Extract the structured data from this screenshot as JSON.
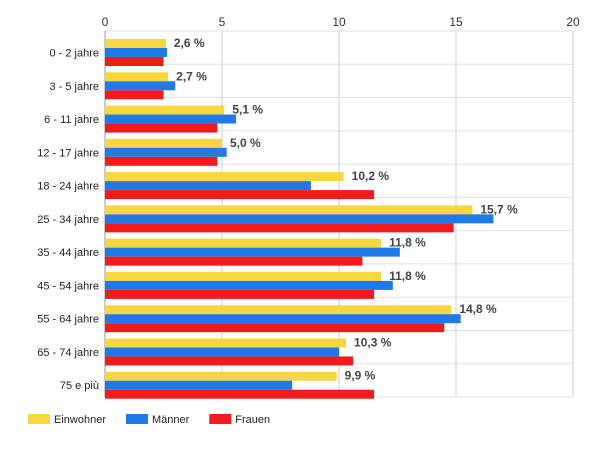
{
  "chart_data": {
    "type": "bar",
    "orientation": "horizontal",
    "categories": [
      "0 - 2 jahre",
      "3 - 5 jahre",
      "6 - 11 jahre",
      "12 - 17 jahre",
      "18 - 24 jahre",
      "25 - 34 jahre",
      "35 - 44 jahre",
      "45 - 54 jahre",
      "55 - 64 jahre",
      "65 - 74 jahre",
      "75 e più"
    ],
    "series": [
      {
        "name": "Einwohner",
        "color": "#f7d740",
        "values": [
          2.6,
          2.7,
          5.1,
          5.0,
          10.2,
          15.7,
          11.8,
          11.8,
          14.8,
          10.3,
          9.9
        ]
      },
      {
        "name": "Männer",
        "color": "#1f7ae8",
        "values": [
          2.65,
          3.0,
          5.6,
          5.2,
          8.8,
          16.6,
          12.6,
          12.3,
          15.2,
          10.0,
          8.0
        ]
      },
      {
        "name": "Frauen",
        "color": "#f21b1b",
        "values": [
          2.5,
          2.5,
          4.8,
          4.8,
          11.5,
          14.9,
          11.0,
          11.5,
          14.5,
          10.6,
          11.5
        ]
      }
    ],
    "data_labels": [
      "2,6 %",
      "2,7 %",
      "5,1 %",
      "5,0 %",
      "10,2 %",
      "15,7 %",
      "11,8 %",
      "11,8 %",
      "14,8 %",
      "10,3 %",
      "9,9 %"
    ],
    "xlim": [
      0,
      20
    ],
    "xticks": [
      0,
      5,
      10,
      15,
      20
    ],
    "grid": true,
    "legend_position": "bottom-left",
    "title": "",
    "xlabel": "",
    "ylabel": ""
  }
}
